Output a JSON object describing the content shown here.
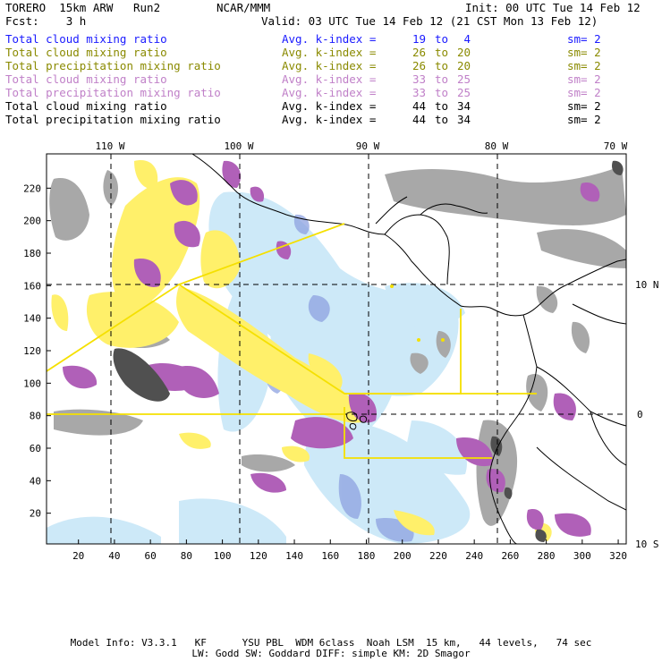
{
  "header": {
    "model": "TORERO  15km ARW   Run2",
    "org": "NCAR/MMM",
    "init": "Init: 00 UTC Tue 14 Feb 12",
    "fcst": "Fcst:    3 h",
    "valid": "Valid: 03 UTC Tue 14 Feb 12 (21 CST Mon 13 Feb 12)"
  },
  "legend_rows": [
    {
      "label": "Total cloud mixing ratio",
      "avg": "Avg. k-index =",
      "k1": "19",
      "to": "to",
      "k2": "4",
      "sm": "sm= 2",
      "color": "#1a1aff"
    },
    {
      "label": "Total cloud mixing ratio",
      "avg": "Avg. k-index =",
      "k1": "26",
      "to": "to",
      "k2": "20",
      "sm": "sm= 2",
      "color": "#8a8a00"
    },
    {
      "label": "Total precipitation mixing ratio",
      "avg": "Avg. k-index =",
      "k1": "26",
      "to": "to",
      "k2": "20",
      "sm": "sm= 2",
      "color": "#8a8a00"
    },
    {
      "label": "Total cloud mixing ratio",
      "avg": "Avg. k-index =",
      "k1": "33",
      "to": "to",
      "k2": "25",
      "sm": "sm= 2",
      "color": "#c080c8"
    },
    {
      "label": "Total precipitation mixing ratio",
      "avg": "Avg. k-index =",
      "k1": "33",
      "to": "to",
      "k2": "25",
      "sm": "sm= 2",
      "color": "#c080c8"
    },
    {
      "label": "Total cloud mixing ratio",
      "avg": "Avg. k-index =",
      "k1": "44",
      "to": "to",
      "k2": "34",
      "sm": "sm= 2",
      "color": "#000000"
    },
    {
      "label": "Total precipitation mixing ratio",
      "avg": "Avg. k-index =",
      "k1": "44",
      "to": "to",
      "k2": "34",
      "sm": "sm= 2",
      "color": "#000000"
    }
  ],
  "map": {
    "top_longitudes": [
      "110 W",
      "100 W",
      "90 W",
      "80 W",
      "70 W"
    ],
    "right_latitudes": [
      "10 N",
      "0",
      "10 S"
    ],
    "y_ticks": [
      "220",
      "200",
      "180",
      "160",
      "140",
      "120",
      "100",
      "80",
      "60",
      "40",
      "20"
    ],
    "x_ticks": [
      "20",
      "40",
      "60",
      "80",
      "100",
      "120",
      "140",
      "160",
      "180",
      "200",
      "220",
      "240",
      "260",
      "280",
      "300",
      "320"
    ]
  },
  "footer": {
    "line1": "Model Info: V3.3.1   KF      YSU PBL  WDM 6class  Noah LSM  15 km,   44 levels,   74 sec",
    "line2": "LW: Godd SW: Goddard DIFF: simple KM: 2D Smagor"
  },
  "colors": {
    "cloud_blue": "#c8e8f8",
    "cloud_blue_dark": "#8ea2e0",
    "yellow": "#fff06a",
    "purple": "#b060b8",
    "gray": "#a0a0a0",
    "dark_gray": "#505050",
    "box_yellow": "#f5e000"
  }
}
